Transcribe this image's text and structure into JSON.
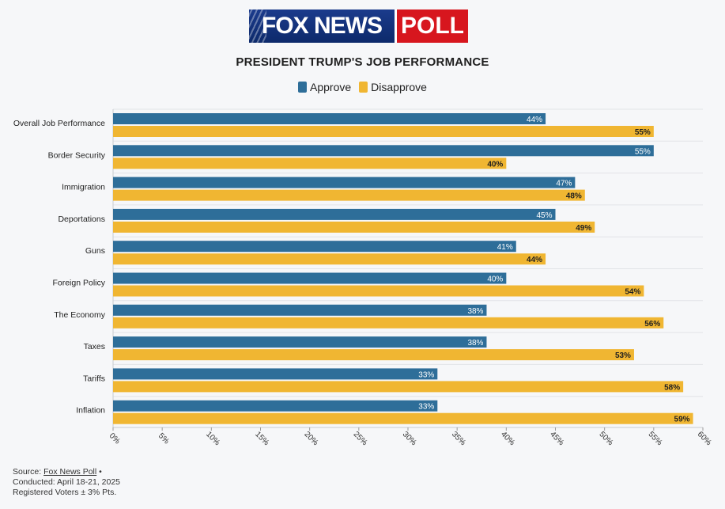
{
  "logo": {
    "left": "FOX NEWS",
    "right": "POLL"
  },
  "chart_data": {
    "type": "bar",
    "orientation": "horizontal",
    "title": "PRESIDENT TRUMP'S JOB PERFORMANCE",
    "categories": [
      "Overall Job Performance",
      "Border Security",
      "Immigration",
      "Deportations",
      "Guns",
      "Foreign Policy",
      "The Economy",
      "Taxes",
      "Tariffs",
      "Inflation"
    ],
    "series": [
      {
        "name": "Approve",
        "color": "#2e6e99",
        "values": [
          44,
          55,
          47,
          45,
          41,
          40,
          38,
          38,
          33,
          33
        ]
      },
      {
        "name": "Disapprove",
        "color": "#f0b632",
        "values": [
          55,
          40,
          48,
          49,
          44,
          54,
          56,
          53,
          58,
          59
        ]
      }
    ],
    "xlim": [
      0,
      60
    ],
    "xticks": [
      0,
      5,
      10,
      15,
      20,
      25,
      30,
      35,
      40,
      45,
      50,
      55,
      60
    ],
    "tick_suffix": "%",
    "grid": true,
    "legend_position": "top-center"
  },
  "footer": {
    "source_prefix": "Source: ",
    "source_link": "Fox News Poll",
    "source_suffix": " •",
    "conducted": "Conducted: April 18-21, 2025",
    "margin": "Registered Voters ± 3% Pts."
  }
}
